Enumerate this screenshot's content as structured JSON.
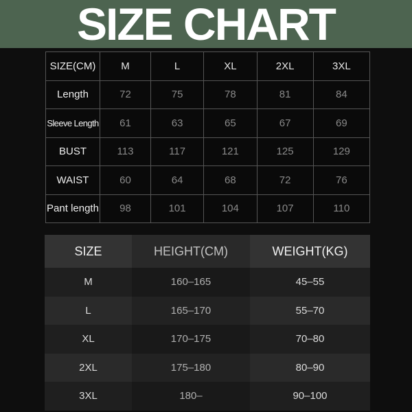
{
  "title": "SIZE CHART",
  "colors": {
    "banner": "#4d6450",
    "background": "#0e0e0e"
  },
  "measurements": {
    "headers": [
      "SIZE(CM)",
      "M",
      "L",
      "XL",
      "2XL",
      "3XL"
    ],
    "rows": [
      {
        "label": "Length",
        "values": [
          "72",
          "75",
          "78",
          "81",
          "84"
        ]
      },
      {
        "label": "Sleeve Length",
        "values": [
          "61",
          "63",
          "65",
          "67",
          "69"
        ]
      },
      {
        "label": "BUST",
        "values": [
          "113",
          "117",
          "121",
          "125",
          "129"
        ]
      },
      {
        "label": "WAIST",
        "values": [
          "60",
          "64",
          "68",
          "72",
          "76"
        ]
      },
      {
        "label": "Pant length",
        "values": [
          "98",
          "101",
          "104",
          "107",
          "110"
        ]
      }
    ]
  },
  "fit_guide": {
    "headers": [
      "SIZE",
      "HEIGHT(CM)",
      "WEIGHT(KG)"
    ],
    "rows": [
      [
        "M",
        "160–165",
        "45–55"
      ],
      [
        "L",
        "165–170",
        "55–70"
      ],
      [
        "XL",
        "170–175",
        "70–80"
      ],
      [
        "2XL",
        "175–180",
        "80–90"
      ],
      [
        "3XL",
        "180–",
        "90–100"
      ]
    ]
  }
}
